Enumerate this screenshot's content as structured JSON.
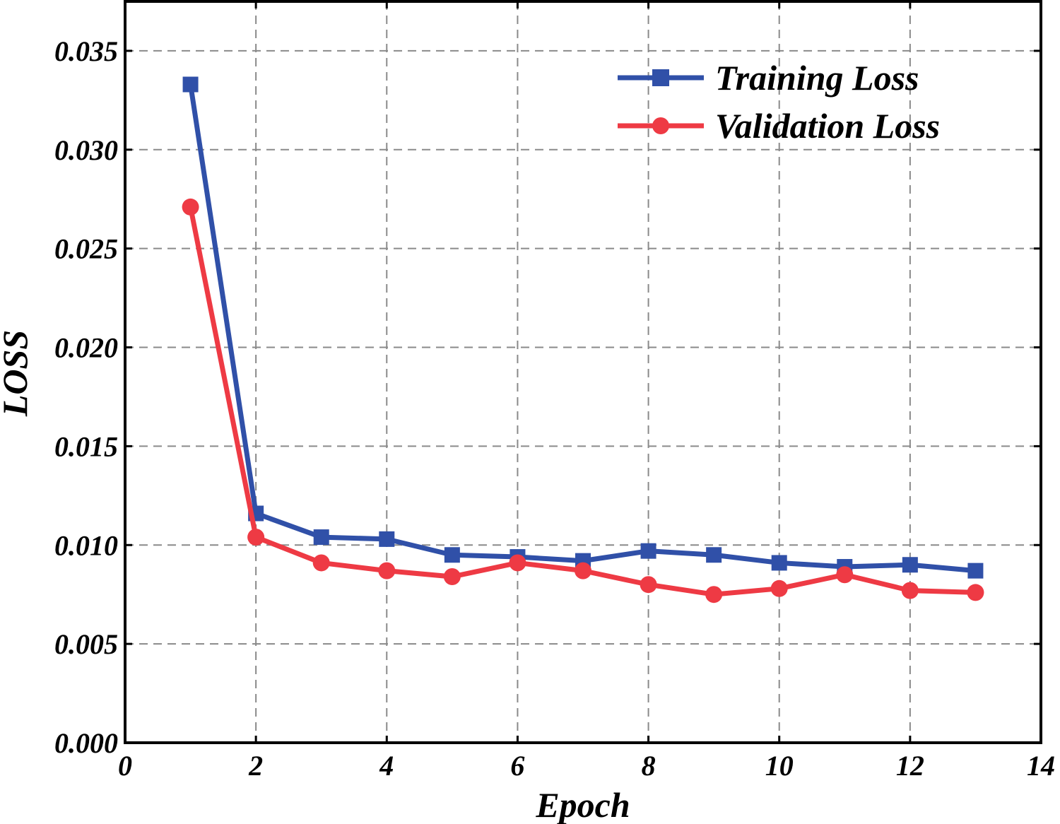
{
  "chart_data": {
    "type": "line",
    "title": "",
    "xlabel": "Epoch",
    "ylabel": "LOSS",
    "xlim": [
      0,
      14
    ],
    "ylim": [
      0,
      0.0375
    ],
    "x_ticks": [
      0,
      2,
      4,
      6,
      8,
      10,
      12,
      14
    ],
    "x_tick_labels": [
      "0",
      "2",
      "4",
      "6",
      "8",
      "10",
      "12",
      "14"
    ],
    "y_ticks": [
      0,
      0.005,
      0.01,
      0.015,
      0.02,
      0.025,
      0.03,
      0.035
    ],
    "y_tick_labels": [
      "0.000",
      "0.005",
      "0.010",
      "0.015",
      "0.020",
      "0.025",
      "0.030",
      "0.035"
    ],
    "grid": true,
    "legend_position": "top-right",
    "x": [
      1,
      2,
      3,
      4,
      5,
      6,
      7,
      8,
      9,
      10,
      11,
      12,
      13
    ],
    "series": [
      {
        "name": "Training Loss",
        "color": "#3050a8",
        "marker": "square",
        "values": [
          0.0333,
          0.0116,
          0.0104,
          0.0103,
          0.0095,
          0.0094,
          0.0092,
          0.0097,
          0.0095,
          0.0091,
          0.0089,
          0.009,
          0.0087
        ]
      },
      {
        "name": "Validation Loss",
        "color": "#ee3a44",
        "marker": "circle",
        "values": [
          0.0271,
          0.0104,
          0.0091,
          0.0087,
          0.0084,
          0.0091,
          0.0087,
          0.008,
          0.0075,
          0.0078,
          0.0085,
          0.0077,
          0.0076
        ]
      }
    ]
  }
}
